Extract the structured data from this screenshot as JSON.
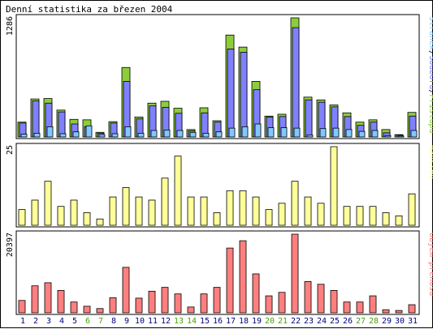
{
  "title": "Denní statistika za březen 2004",
  "colors": {
    "hits": "#8ccd3c",
    "files": "#8080ff",
    "pages": "#80c8ff",
    "visits": "#ffff99",
    "kbytes": "#ff7f7f",
    "weekend": "#47a10a",
    "weekday": "#000080",
    "frame": "#000000"
  },
  "chart_data": [
    {
      "type": "bar",
      "panel": "top",
      "ymax_label": "1286",
      "ylim": [
        0,
        1286
      ],
      "categories": [
        "1",
        "2",
        "3",
        "4",
        "5",
        "6",
        "7",
        "8",
        "9",
        "10",
        "11",
        "12",
        "13",
        "14",
        "15",
        "16",
        "17",
        "18",
        "19",
        "20",
        "21",
        "22",
        "23",
        "24",
        "25",
        "26",
        "27",
        "28",
        "29",
        "30",
        "31"
      ],
      "series": [
        {
          "name": "Přístupů",
          "values": [
            160,
            410,
            415,
            290,
            190,
            185,
            50,
            165,
            750,
            215,
            365,
            385,
            310,
            80,
            315,
            175,
            1100,
            970,
            600,
            225,
            245,
            1286,
            430,
            400,
            345,
            260,
            160,
            185,
            80,
            25,
            265
          ]
        },
        {
          "name": "Souborů",
          "values": [
            150,
            390,
            365,
            270,
            140,
            110,
            40,
            150,
            600,
            195,
            335,
            320,
            255,
            65,
            260,
            160,
            950,
            915,
            510,
            215,
            220,
            1180,
            400,
            375,
            325,
            220,
            125,
            160,
            45,
            20,
            225
          ]
        },
        {
          "name": "Stránek",
          "values": [
            30,
            40,
            110,
            35,
            55,
            120,
            25,
            35,
            110,
            40,
            70,
            75,
            70,
            50,
            40,
            55,
            95,
            110,
            140,
            100,
            100,
            95,
            20,
            90,
            95,
            80,
            60,
            70,
            15,
            10,
            70
          ]
        }
      ],
      "legend_labels": [
        "Stránek",
        "Souborů",
        "Přístupů"
      ]
    },
    {
      "type": "bar",
      "panel": "middle",
      "ymax_label": "25",
      "ylim": [
        0,
        25
      ],
      "categories": [
        "1",
        "2",
        "3",
        "4",
        "5",
        "6",
        "7",
        "8",
        "9",
        "10",
        "11",
        "12",
        "13",
        "14",
        "15",
        "16",
        "17",
        "18",
        "19",
        "20",
        "21",
        "22",
        "23",
        "24",
        "25",
        "26",
        "27",
        "28",
        "29",
        "30",
        "31"
      ],
      "series": [
        {
          "name": "Návštěv",
          "values": [
            5,
            8,
            14,
            6,
            8,
            4,
            2,
            9,
            12,
            9,
            8,
            15,
            22,
            9,
            9,
            4,
            11,
            11,
            9,
            5,
            7,
            14,
            9,
            7,
            25,
            6,
            6,
            6,
            4,
            3,
            10
          ]
        }
      ]
    },
    {
      "type": "bar",
      "panel": "bottom",
      "ymax_label": "20397",
      "ylim": [
        0,
        20397
      ],
      "categories": [
        "1",
        "2",
        "3",
        "4",
        "5",
        "6",
        "7",
        "8",
        "9",
        "10",
        "11",
        "12",
        "13",
        "14",
        "15",
        "16",
        "17",
        "18",
        "19",
        "20",
        "21",
        "22",
        "23",
        "24",
        "25",
        "26",
        "27",
        "28",
        "29",
        "30",
        "31"
      ],
      "series": [
        {
          "name": "Objem přenosu",
          "values": [
            3200,
            7000,
            7800,
            5800,
            2800,
            1700,
            1100,
            3900,
            11800,
            3800,
            5600,
            6600,
            4900,
            1500,
            4900,
            6600,
            16800,
            18700,
            10100,
            4400,
            5300,
            20397,
            8100,
            7400,
            5800,
            2800,
            2800,
            4400,
            800,
            600,
            2100
          ]
        }
      ]
    }
  ],
  "weekend_days": [
    "6",
    "7",
    "13",
    "14",
    "20",
    "21",
    "27",
    "28"
  ]
}
